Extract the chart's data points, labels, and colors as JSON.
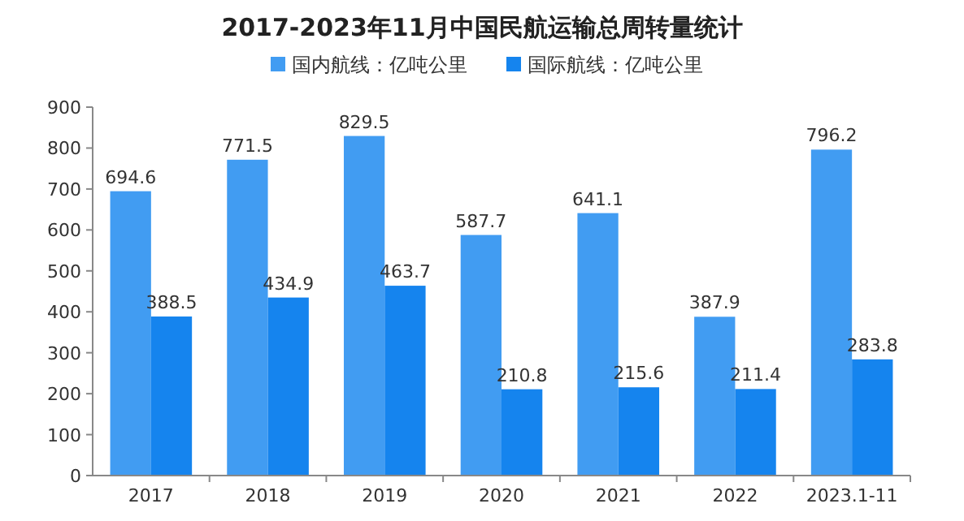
{
  "chart_data": {
    "type": "bar",
    "title": "2017-2023年11月中国民航运输总周转量统计",
    "categories": [
      "2017",
      "2018",
      "2019",
      "2020",
      "2021",
      "2022",
      "2023.1-11"
    ],
    "series": [
      {
        "name": "国内航线：亿吨公里",
        "color": "#419cf2",
        "values": [
          694.6,
          771.5,
          829.5,
          587.7,
          641.1,
          387.9,
          796.2
        ]
      },
      {
        "name": "国际航线：亿吨公里",
        "color": "#1584ee",
        "values": [
          388.5,
          434.9,
          463.7,
          210.8,
          215.6,
          211.4,
          283.8
        ]
      }
    ],
    "ylim": [
      0,
      900
    ],
    "yticks": [
      0,
      100,
      200,
      300,
      400,
      500,
      600,
      700,
      800,
      900
    ],
    "data_labels": true,
    "legend": "top"
  }
}
